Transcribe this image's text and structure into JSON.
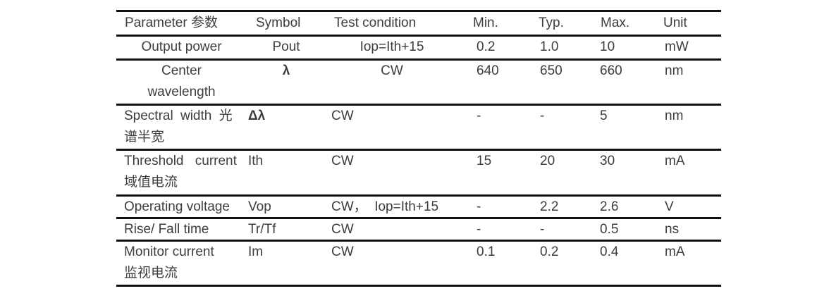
{
  "page": {
    "background": "#ffffff",
    "text_color": "#3d3d3d",
    "line_color": "#111111"
  },
  "table": {
    "headers": [
      "Parameter 参数",
      "Symbol",
      "Test condition",
      "Min.",
      "Typ.",
      "Max.",
      "Unit"
    ],
    "rows": [
      {
        "parameter": [
          "Output power"
        ],
        "symbol": "Pout",
        "condition": "Iop=Ith+15",
        "min": "0.2",
        "typ": "1.0",
        "max": "10",
        "unit": "mW",
        "align": "center"
      },
      {
        "parameter": [
          "Center",
          "wavelength"
        ],
        "symbol": "λ",
        "condition": "CW",
        "min": "640",
        "typ": "650",
        "max": "660",
        "unit": "nm",
        "align": "center"
      },
      {
        "parameter": [
          "Spectral width 光",
          "谱半宽"
        ],
        "symbol": "Δλ",
        "condition": "CW",
        "min": "-",
        "typ": "-",
        "max": "5",
        "unit": "nm",
        "align": "left"
      },
      {
        "parameter": [
          "Threshold current",
          "域值电流"
        ],
        "symbol": "Ith",
        "condition": "CW",
        "min": "15",
        "typ": "20",
        "max": "30",
        "unit": "mA",
        "align": "left"
      },
      {
        "parameter": [
          "Operating voltage"
        ],
        "symbol": "Vop",
        "condition": "CW，  Iop=Ith+15",
        "min": "-",
        "typ": "2.2",
        "max": "2.6",
        "unit": "V",
        "align": "left"
      },
      {
        "parameter": [
          "Rise/ Fall time"
        ],
        "symbol": "Tr/Tf",
        "condition": "CW",
        "min": "-",
        "typ": "-",
        "max": "0.5",
        "unit": "ns",
        "align": "left"
      },
      {
        "parameter": [
          "Monitor current",
          "监视电流"
        ],
        "symbol": "Im",
        "condition": "CW",
        "min": "0.1",
        "typ": "0.2",
        "max": "0.4",
        "unit": "mA",
        "align": "left"
      }
    ]
  }
}
